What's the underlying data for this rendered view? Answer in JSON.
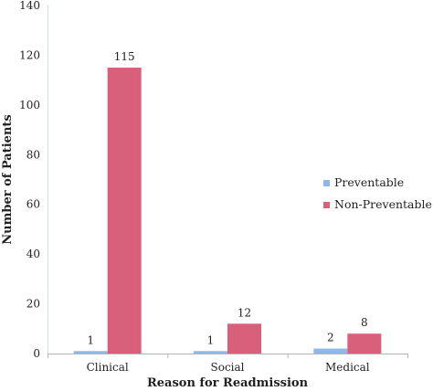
{
  "chart_data": {
    "type": "bar",
    "categories": [
      "Clinical",
      "Social",
      "Medical"
    ],
    "series": [
      {
        "name": "Preventable",
        "values": [
          1,
          1,
          2
        ],
        "color": "#8fb8e8"
      },
      {
        "name": "Non-Preventable",
        "values": [
          115,
          12,
          8
        ],
        "color": "#d9607a"
      }
    ],
    "xlabel": "Reason for Readmission",
    "ylabel": "Number of Patients",
    "ylim": [
      0,
      140
    ],
    "yticks": [
      0,
      20,
      40,
      60,
      80,
      100,
      120,
      140
    ],
    "grid": false,
    "legend_position": "right"
  }
}
